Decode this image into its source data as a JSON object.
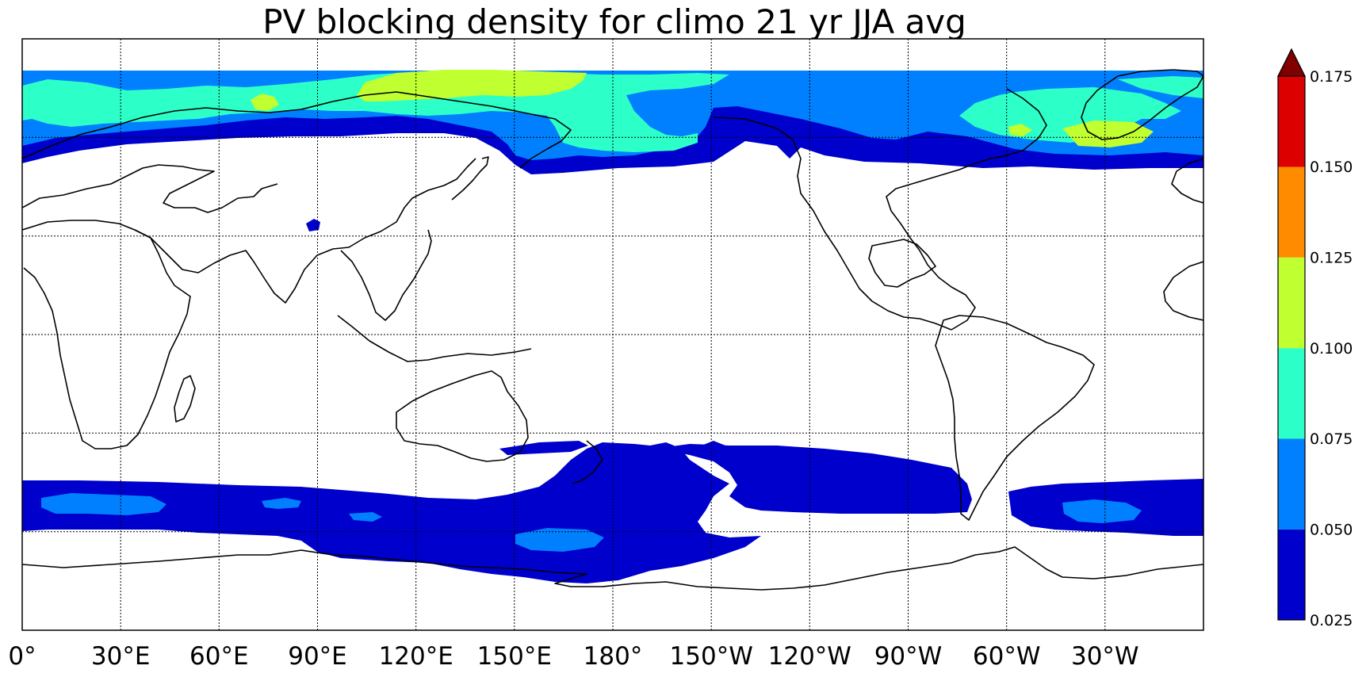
{
  "title": "PV blocking density for climo 21 yr JJA avg",
  "lon_ticks": [
    "0°",
    "30°E",
    "60°E",
    "90°E",
    "120°E",
    "150°E",
    "180°",
    "150°W",
    "120°W",
    "90°W",
    "60°W",
    "30°W"
  ],
  "colorbar": {
    "ticks": [
      "0.025",
      "0.050",
      "0.075",
      "0.100",
      "0.125",
      "0.150",
      "0.175"
    ],
    "colors": [
      "#0000cd",
      "#0080ff",
      "#2cffc8",
      "#c0ff30",
      "#ff8c00",
      "#dd0000"
    ],
    "extend_color": "#800000"
  },
  "colors": {
    "level1": "#0000cd",
    "level2": "#0080ff",
    "level3": "#2cffc8",
    "level4": "#c0ff30",
    "coast": "#000000"
  }
}
